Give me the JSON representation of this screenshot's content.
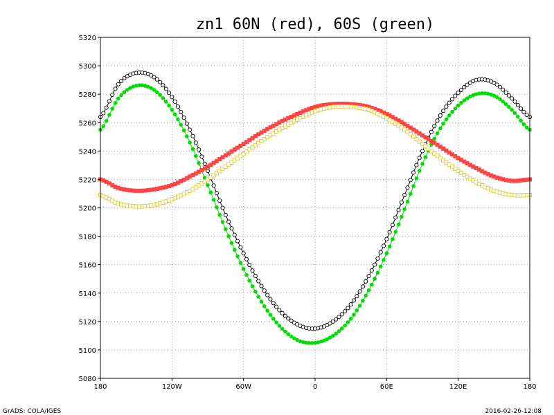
{
  "chart_data": {
    "type": "line",
    "title": "zn1 60N (red), 60S (green)",
    "xlabel": "",
    "ylabel": "",
    "xlim": [
      -180,
      180
    ],
    "ylim": [
      5080,
      5320
    ],
    "x_ticks": [
      {
        "value": -180,
        "label": "180"
      },
      {
        "value": -120,
        "label": "120W"
      },
      {
        "value": -60,
        "label": "60W"
      },
      {
        "value": 0,
        "label": "0"
      },
      {
        "value": 60,
        "label": "60E"
      },
      {
        "value": 120,
        "label": "120E"
      },
      {
        "value": 180,
        "label": "180"
      }
    ],
    "y_ticks": [
      {
        "value": 5080,
        "label": "5080"
      },
      {
        "value": 5100,
        "label": "5100"
      },
      {
        "value": 5120,
        "label": "5120"
      },
      {
        "value": 5140,
        "label": "5140"
      },
      {
        "value": 5160,
        "label": "5160"
      },
      {
        "value": 5180,
        "label": "5180"
      },
      {
        "value": 5200,
        "label": "5200"
      },
      {
        "value": 5220,
        "label": "5220"
      },
      {
        "value": 5240,
        "label": "5240"
      },
      {
        "value": 5260,
        "label": "5260"
      },
      {
        "value": 5280,
        "label": "5280"
      },
      {
        "value": 5300,
        "label": "5300"
      },
      {
        "value": 5320,
        "label": "5320"
      }
    ],
    "grid": true,
    "series": [
      {
        "color": "#000000",
        "marker": "open-circle",
        "x": [
          -180,
          -165,
          -150,
          -135,
          -120,
          -105,
          -90,
          -75,
          -60,
          -45,
          -30,
          -15,
          0,
          15,
          30,
          45,
          60,
          75,
          90,
          105,
          120,
          135,
          150,
          165,
          180
        ],
        "values": [
          5264,
          5287,
          5295,
          5292,
          5278,
          5255,
          5226,
          5195,
          5168,
          5145,
          5128,
          5118,
          5115,
          5120,
          5132,
          5152,
          5178,
          5209,
          5240,
          5265,
          5281,
          5290,
          5288,
          5277,
          5264
        ]
      },
      {
        "color": "#00dd00",
        "marker": "filled-circle",
        "x": [
          -180,
          -165,
          -150,
          -135,
          -120,
          -105,
          -90,
          -75,
          -60,
          -45,
          -30,
          -15,
          0,
          15,
          30,
          45,
          60,
          75,
          90,
          105,
          120,
          135,
          150,
          165,
          180
        ],
        "values": [
          5255,
          5277,
          5286,
          5283,
          5269,
          5246,
          5216,
          5185,
          5157,
          5134,
          5117,
          5107,
          5105,
          5110,
          5122,
          5142,
          5168,
          5199,
          5231,
          5256,
          5272,
          5280,
          5279,
          5269,
          5255
        ]
      },
      {
        "color": "#ff4444",
        "marker": "filled-square",
        "x": [
          -180,
          -165,
          -150,
          -135,
          -120,
          -105,
          -90,
          -75,
          -60,
          -45,
          -30,
          -15,
          0,
          15,
          30,
          45,
          60,
          75,
          90,
          105,
          120,
          135,
          150,
          165,
          180
        ],
        "values": [
          5220,
          5214,
          5212,
          5213,
          5216,
          5222,
          5229,
          5237,
          5245,
          5253,
          5260,
          5266,
          5271,
          5273,
          5273,
          5271,
          5266,
          5259,
          5251,
          5243,
          5235,
          5228,
          5222,
          5219,
          5220
        ]
      },
      {
        "color": "#ddcc33",
        "marker": "open-square",
        "x": [
          -180,
          -165,
          -150,
          -135,
          -120,
          -105,
          -90,
          -75,
          -60,
          -45,
          -30,
          -15,
          0,
          15,
          30,
          45,
          60,
          75,
          90,
          105,
          120,
          135,
          150,
          165,
          180
        ],
        "values": [
          5209,
          5203,
          5201,
          5202,
          5206,
          5212,
          5220,
          5229,
          5238,
          5247,
          5255,
          5262,
          5268,
          5271,
          5271,
          5269,
          5263,
          5255,
          5245,
          5235,
          5226,
          5218,
          5212,
          5209,
          5209
        ]
      }
    ]
  },
  "footer": {
    "left": "GrADS: COLA/IGES",
    "right": "2016-02-26-12:08"
  }
}
